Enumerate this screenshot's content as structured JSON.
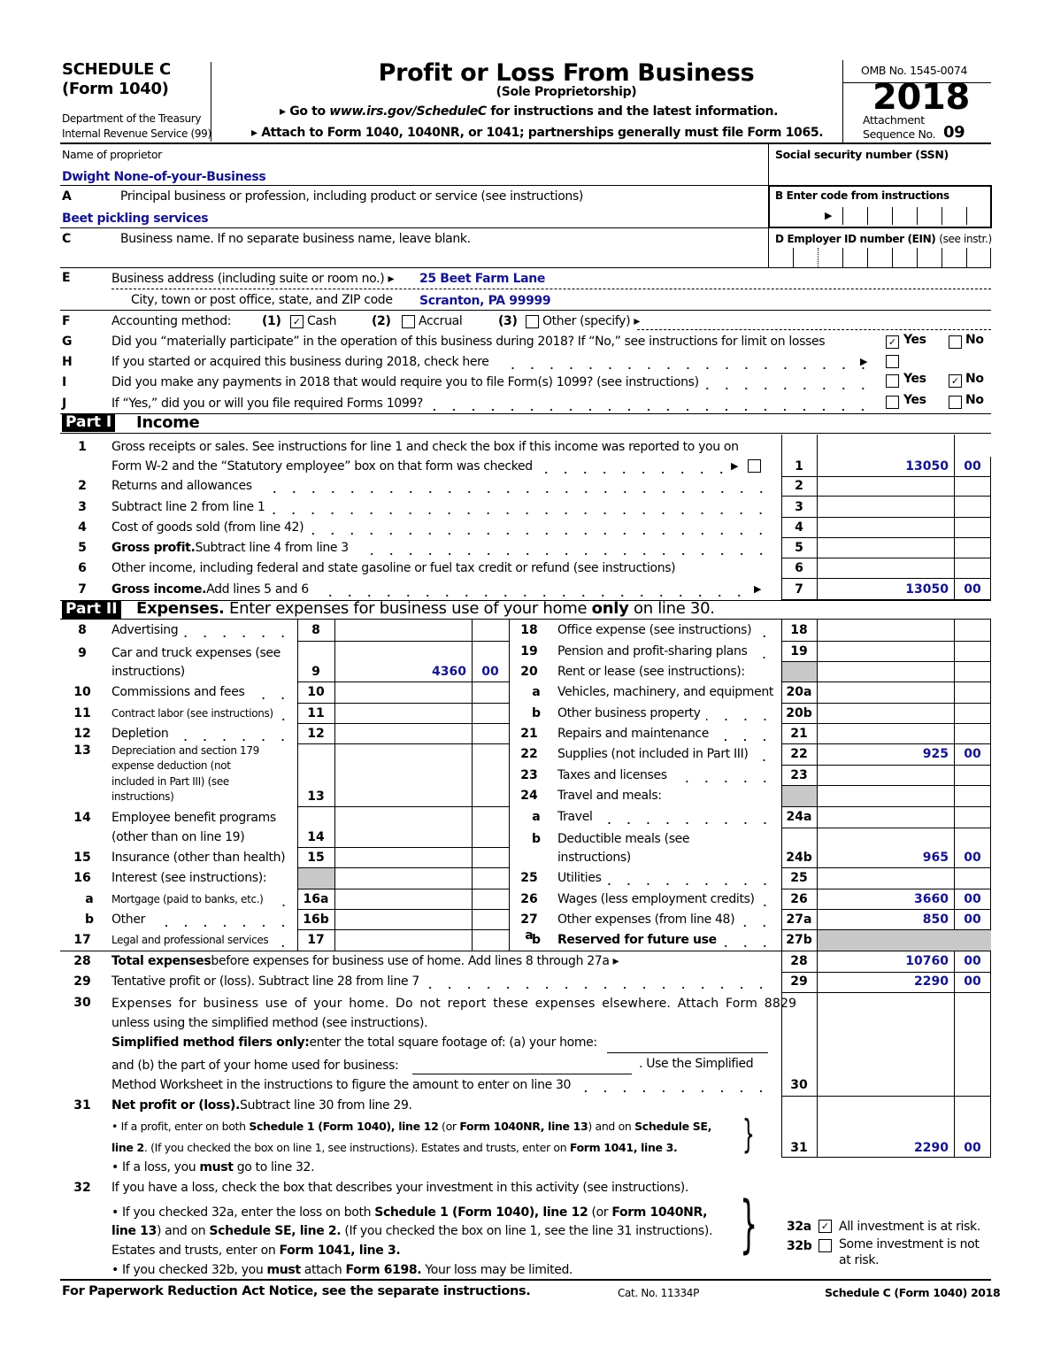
{
  "header": {
    "schedule": "SCHEDULE C",
    "form": "(Form 1040)",
    "dept1": "Department of the Treasury",
    "dept2": "Internal Revenue Service (99)",
    "title": "Profit or Loss From Business",
    "subtitle": "(Sole Proprietorship)",
    "goto_pre": "▸ Go to ",
    "goto_url": "www.irs.gov/ScheduleC",
    "goto_post": " for instructions and the latest information.",
    "attach": "▸ Attach to Form 1040, 1040NR, or 1041; partnerships generally must file Form 1065.",
    "omb": "OMB No. 1545-0074",
    "year": "2018",
    "attachment": "Attachment",
    "sequence_label": "Sequence No.",
    "sequence_no": "09"
  },
  "identity": {
    "name_label": "Name of proprietor",
    "name_value": "Dwight None-of-your-Business",
    "ssn_label": "Social security number (SSN)",
    "a_letter": "A",
    "a_label": "Principal business or profession, including product or service (see instructions)",
    "a_value": "Beet pickling services",
    "b_label": "B  Enter code from instructions",
    "c_letter": "C",
    "c_label": "Business name. If no separate business name, leave blank.",
    "d_label": "D Employer ID number (EIN)",
    "d_note": "(see instr.)",
    "e_letter": "E",
    "e_label": "Business address (including suite or room no.) ▸",
    "e_value": "25 Beet Farm Lane",
    "city_label": "City, town or post office, state, and ZIP code",
    "city_value": "Scranton, PA  99999"
  },
  "questions": {
    "f_letter": "F",
    "f_label": "Accounting method:",
    "f_opt1_num": "(1)",
    "f_opt1": "Cash",
    "f_opt1_checked": true,
    "f_opt2_num": "(2)",
    "f_opt2": "Accrual",
    "f_opt2_checked": false,
    "f_opt3_num": "(3)",
    "f_opt3": "Other (specify) ▸",
    "f_opt3_checked": false,
    "g_letter": "G",
    "g_label": "Did you “materially participate” in the operation of this business during 2018? If “No,” see instructions for limit on losses",
    "g_yes": true,
    "g_no": false,
    "h_letter": "H",
    "h_label": "If you started or acquired this business during 2018, check here",
    "h_checked": false,
    "i_letter": "I",
    "i_label": "Did you make any payments in 2018 that would require you to file Form(s) 1099? (see instructions)",
    "i_yes": false,
    "i_no": true,
    "j_letter": "J",
    "j_label": "If “Yes,” did you or will you file required Forms 1099?",
    "j_yes": false,
    "j_no": false,
    "yes": "Yes",
    "no": "No"
  },
  "part1": {
    "tag": "Part I",
    "title": "Income",
    "lines": [
      {
        "num": "1",
        "text": "Gross receipts or sales. See instructions for line 1 and check the box if this income was reported to you on",
        "text2": "Form W-2 and the “Statutory employee” box on that form was checked",
        "box": "1",
        "amount": "13050",
        "cents": "00",
        "checked": false
      },
      {
        "num": "2",
        "text": "Returns and allowances",
        "box": "2"
      },
      {
        "num": "3",
        "text": "Subtract line 2 from line 1",
        "box": "3"
      },
      {
        "num": "4",
        "text": "Cost of goods sold (from line 42)",
        "box": "4"
      },
      {
        "num": "5",
        "bold": "Gross profit.",
        "text": "  Subtract line 4 from line 3",
        "box": "5"
      },
      {
        "num": "6",
        "text": "Other income, including federal and state gasoline or fuel tax credit or refund (see instructions)",
        "box": "6"
      },
      {
        "num": "7",
        "bold": "Gross income.",
        "text": "  Add lines 5 and 6",
        "box": "7",
        "amount": "13050",
        "cents": "00"
      }
    ]
  },
  "part2": {
    "tag": "Part II",
    "title_bold": "Expenses.",
    "title_pre": " Enter expenses for business use of your home ",
    "title_only": "only",
    "title_post": " on line 30.",
    "left": [
      {
        "num": "8",
        "lines": [
          "Advertising"
        ],
        "box": "8"
      },
      {
        "num": "9",
        "lines": [
          "Car and truck expenses (see",
          "instructions)"
        ],
        "box": "9",
        "amount": "4360",
        "cents": "00"
      },
      {
        "num": "10",
        "lines": [
          "Commissions and fees"
        ],
        "box": "10"
      },
      {
        "num": "11",
        "lines": [
          "Contract labor (see instructions)"
        ],
        "box": "11",
        "small": true
      },
      {
        "num": "12",
        "lines": [
          "Depletion"
        ],
        "box": "12"
      },
      {
        "num": "13",
        "lines": [
          "Depreciation and section 179",
          "expense  deduction  (not",
          "included  in  Part  III)  (see",
          "instructions)"
        ],
        "box": "13",
        "small": true
      },
      {
        "num": "14",
        "lines": [
          "Employee benefit programs",
          "(other than on line 19)"
        ],
        "box": "14"
      },
      {
        "num": "15",
        "lines": [
          "Insurance (other than health)"
        ],
        "box": "15"
      },
      {
        "num": "16",
        "lines": [
          "Interest (see instructions):"
        ],
        "box": "",
        "shaded": true
      },
      {
        "num": "a",
        "lines": [
          "Mortgage (paid to banks, etc.)"
        ],
        "box": "16a",
        "small": true
      },
      {
        "num": "b",
        "lines": [
          "Other"
        ],
        "box": "16b"
      },
      {
        "num": "17",
        "lines": [
          "Legal and professional services"
        ],
        "box": "17",
        "small": true
      }
    ],
    "right": [
      {
        "num": "18",
        "lines": [
          "Office expense (see instructions)"
        ],
        "box": "18"
      },
      {
        "num": "19",
        "lines": [
          "Pension and profit-sharing plans"
        ],
        "box": "19"
      },
      {
        "num": "20",
        "lines": [
          "Rent or lease (see instructions):"
        ],
        "box": "",
        "shaded": true
      },
      {
        "num": "a",
        "lines": [
          "Vehicles, machinery, and equipment"
        ],
        "box": "20a"
      },
      {
        "num": "b",
        "lines": [
          "Other business property"
        ],
        "box": "20b"
      },
      {
        "num": "21",
        "lines": [
          "Repairs and maintenance"
        ],
        "box": "21"
      },
      {
        "num": "22",
        "lines": [
          "Supplies (not included in Part III)"
        ],
        "box": "22",
        "amount": "925",
        "cents": "00"
      },
      {
        "num": "23",
        "lines": [
          "Taxes and licenses"
        ],
        "box": "23"
      },
      {
        "num": "24",
        "lines": [
          "Travel and meals:"
        ],
        "box": "",
        "shaded": true
      },
      {
        "num": "a",
        "lines": [
          "Travel"
        ],
        "box": "24a"
      },
      {
        "num": "b",
        "lines": [
          "Deductible meals (see",
          "instructions)"
        ],
        "box": "24b",
        "amount": "965",
        "cents": "00"
      },
      {
        "num": "25",
        "lines": [
          "Utilities"
        ],
        "box": "25"
      },
      {
        "num": "26",
        "lines": [
          "Wages (less employment credits)"
        ],
        "box": "26",
        "amount": "3660",
        "cents": "00"
      },
      {
        "num": "27 a",
        "lines": [
          "Other expenses (from line 48)"
        ],
        "box": "27a",
        "amount": "850",
        "cents": "00"
      },
      {
        "num": "b",
        "lines": [
          "Reserved for future use"
        ],
        "box": "27b",
        "bold": true,
        "amount_shaded": true
      }
    ],
    "l28": {
      "num": "28",
      "bold": "Total expenses",
      "text": " before expenses for business use of home. Add lines 8 through 27a ▸",
      "box": "28",
      "amount": "10760",
      "cents": "00"
    },
    "l29": {
      "num": "29",
      "text": "Tentative profit or (loss). Subtract line 28 from line 7",
      "box": "29",
      "amount": "2290",
      "cents": "00"
    },
    "l30": {
      "num": "30",
      "t1": "Expenses for business use of your home. Do not report these expenses elsewhere. Attach Form 8829",
      "t2": "unless using the simplified method (see instructions).",
      "t3b": "Simplified method filers only:",
      "t3": " enter the total square footage of: (a) your home:",
      "t4": "and (b) the part of your home used for business:",
      "t4b": ". Use the Simplified",
      "t5": "Method Worksheet in the instructions to figure the amount to enter on line 30",
      "box": "30"
    },
    "l31": {
      "num": "31",
      "bold": "Net profit or (loss).",
      "text": "  Subtract line 30 from line 29.",
      "b1": [
        {
          "t": "•  If a profit, enter on both "
        },
        {
          "t": "Schedule 1 (Form 1040), line 12",
          "b": true
        },
        {
          "t": " (or "
        },
        {
          "t": "Form 1040NR, line 13",
          "b": true
        },
        {
          "t": ") and on "
        },
        {
          "t": "Schedule SE,",
          "b": true
        }
      ],
      "b2": [
        {
          "t": "line 2",
          "b": true
        },
        {
          "t": ". (If you checked the box on line 1, see instructions). Estates and trusts, enter on "
        },
        {
          "t": "Form 1041, line 3.",
          "b": true
        }
      ],
      "b3": [
        {
          "t": "•  If a loss, you "
        },
        {
          "t": "must",
          "b": true
        },
        {
          "t": "  go to line 32."
        }
      ],
      "box": "31",
      "amount": "2290",
      "cents": "00"
    },
    "l32": {
      "num": "32",
      "text": "If you have a loss, check the box that describes your investment in this activity (see instructions).",
      "b1": [
        {
          "t": "•  If you checked 32a, enter the loss on both "
        },
        {
          "t": "Schedule 1 (Form 1040), line 12",
          "b": true
        },
        {
          "t": " (or "
        },
        {
          "t": "Form 1040NR,",
          "b": true
        }
      ],
      "b2": [
        {
          "t": "line 13",
          "b": true
        },
        {
          "t": ") and on "
        },
        {
          "t": "Schedule SE, line 2.",
          "b": true
        },
        {
          "t": " (If you checked the box on line 1, see the line 31 instructions)."
        }
      ],
      "b3": [
        {
          "t": "Estates and trusts, enter on "
        },
        {
          "t": "Form 1041, line 3.",
          "b": true
        }
      ],
      "b4": [
        {
          "t": "•  If you checked 32b, you "
        },
        {
          "t": "must",
          "b": true
        },
        {
          "t": " attach "
        },
        {
          "t": "Form 6198.",
          "b": true
        },
        {
          "t": " Your loss may be limited."
        }
      ],
      "a_box": "32a",
      "a_label": "All investment is at risk.",
      "a_checked": true,
      "b_box": "32b",
      "b_label1": "Some investment is not",
      "b_label2": "at risk.",
      "b_checked": false
    }
  },
  "footer": {
    "notice": "For Paperwork Reduction Act Notice, see the separate instructions.",
    "cat": "Cat. No. 11334P",
    "form": "Schedule C (Form 1040) 2018"
  },
  "colors": {
    "entry_text": "#14148a",
    "shade": "#c8c8c8"
  }
}
